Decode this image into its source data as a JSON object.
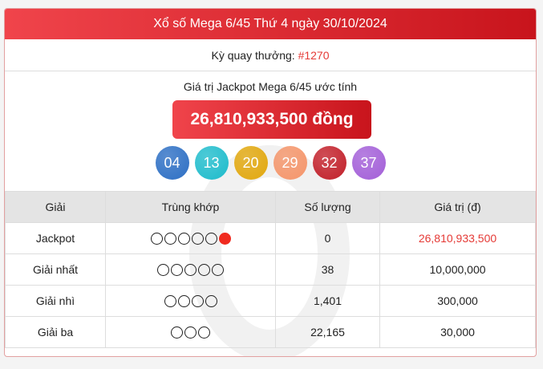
{
  "header": {
    "title": "Xổ số Mega 6/45 Thứ 4 ngày 30/10/2024"
  },
  "draw": {
    "label": "Kỳ quay thưởng: ",
    "number": "#1270"
  },
  "jackpot": {
    "label": "Giá trị Jackpot Mega 6/45 ước tính",
    "value": "26,810,933,500 đồng"
  },
  "balls": [
    {
      "n": "04",
      "color": "#2d6fc4"
    },
    {
      "n": "13",
      "color": "#1fbccc"
    },
    {
      "n": "20",
      "color": "#e2a80e"
    },
    {
      "n": "29",
      "color": "#f5956a"
    },
    {
      "n": "32",
      "color": "#c2202a"
    },
    {
      "n": "37",
      "color": "#a35fd8"
    }
  ],
  "table": {
    "headers": [
      "Giải",
      "Trùng khớp",
      "Số lượng",
      "Giá trị (đ)"
    ],
    "rows": [
      {
        "prize": "Jackpot",
        "match": 5,
        "bonus": true,
        "count": "0",
        "value": "26,810,933,500",
        "highlight": true
      },
      {
        "prize": "Giải nhất",
        "match": 5,
        "bonus": false,
        "count": "38",
        "value": "10,000,000"
      },
      {
        "prize": "Giải nhì",
        "match": 4,
        "bonus": false,
        "count": "1,401",
        "value": "300,000"
      },
      {
        "prize": "Giải ba",
        "match": 3,
        "bonus": false,
        "count": "22,165",
        "value": "30,000"
      }
    ]
  }
}
